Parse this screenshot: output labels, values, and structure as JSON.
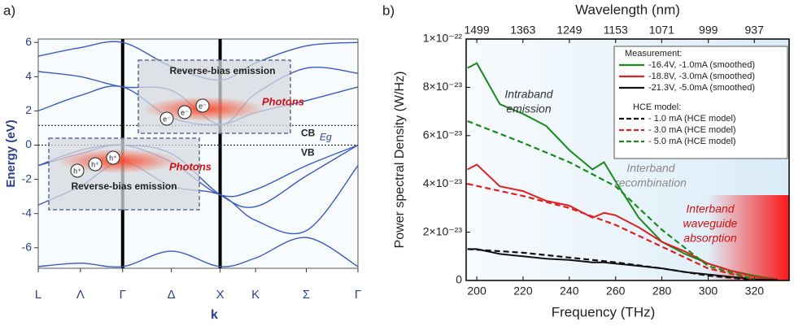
{
  "chart_data": [
    {
      "type": "line",
      "panel_label": "a)",
      "ylabel": "Energy (eV)",
      "xlabel": "k",
      "x": [
        0,
        0.433,
        0.866,
        1.366,
        1.866,
        2.23,
        2.75,
        3.28
      ],
      "xlim": [
        0,
        3.28
      ],
      "ylim": [
        -7.2,
        6.2
      ],
      "xticks": [
        {
          "value": 0,
          "label": "L"
        },
        {
          "value": 0.433,
          "label": "Λ"
        },
        {
          "value": 0.866,
          "label": "Γ"
        },
        {
          "value": 1.366,
          "label": "Δ"
        },
        {
          "value": 1.866,
          "label": "X"
        },
        {
          "value": 2.23,
          "label": "K"
        },
        {
          "value": 2.75,
          "label": "Σ"
        },
        {
          "value": 3.28,
          "label": "Γ"
        }
      ],
      "yticks": [
        -6,
        -4,
        -2,
        0,
        2,
        4,
        6
      ],
      "vlines": [
        0.866,
        1.866
      ],
      "levels": [
        {
          "label": "CB",
          "value": 1.15
        },
        {
          "label": "VB",
          "value": 0
        }
      ],
      "gap_label": "Eg",
      "series": [
        {
          "color": "#3a5bbf",
          "values": [
            -1.2,
            -0.5,
            0,
            -1.0,
            -2.9,
            -2.6,
            -1.2,
            0
          ]
        },
        {
          "color": "#3a5bbf",
          "values": [
            -1.2,
            -0.3,
            0,
            -0.5,
            -2.9,
            -3.6,
            -1.8,
            0
          ]
        },
        {
          "color": "#3a5bbf",
          "values": [
            -3.5,
            -2.4,
            -1.0,
            -2.4,
            -2.9,
            -4.4,
            -5.0,
            -1.2
          ]
        },
        {
          "color": "#3a5bbf",
          "values": [
            -7.1,
            -6.9,
            -7.1,
            -6.2,
            -7.1,
            -6.6,
            -5.4,
            -7.1
          ]
        },
        {
          "color": "#3a5bbf",
          "values": [
            2.0,
            2.9,
            3.4,
            1.6,
            1.2,
            1.9,
            2.6,
            3.4
          ]
        },
        {
          "color": "#3a5bbf",
          "values": [
            4.3,
            4.0,
            3.4,
            3.2,
            1.2,
            3.0,
            4.5,
            4.2
          ]
        },
        {
          "color": "#3a5bbf",
          "values": [
            5.2,
            5.7,
            6.0,
            4.6,
            3.8,
            4.8,
            5.8,
            6.0
          ]
        }
      ],
      "boxes": [
        {
          "title": "Reverse-bias emission",
          "photons": "Photons",
          "particles": [
            "e⁻",
            "e⁻",
            "e⁻"
          ]
        },
        {
          "title": "Reverse-bias emission",
          "photons": "Photons",
          "particles": [
            "h⁺",
            "h⁺",
            "h⁺"
          ]
        }
      ]
    },
    {
      "type": "line",
      "panel_label": "b)",
      "ylabel": "Power spectral Density (W/Hz)",
      "xlabel": "Frequency (THz)",
      "x2label": "Wavelength (nm)",
      "xlim": [
        195.4,
        335
      ],
      "ylim": [
        0,
        1e-22
      ],
      "xticks": [
        200,
        220,
        240,
        260,
        280,
        300,
        320
      ],
      "x2ticks": [
        1499,
        1363,
        1249,
        1153,
        1071,
        999,
        937
      ],
      "yticks": [
        0,
        {
          "value": 2e-23,
          "label": "2×10⁻²³"
        },
        {
          "value": 4e-23,
          "label": "4×10⁻²³"
        },
        {
          "value": 6e-23,
          "label": "6×10⁻²³"
        },
        {
          "value": 8e-23,
          "label": "8×10⁻²³"
        },
        {
          "value": 1e-22,
          "label": "1×10⁻²²"
        }
      ],
      "legend_titles": [
        "Measurement:",
        "HCE model:"
      ],
      "annotations": [
        {
          "text": [
            "Intraband",
            "emission"
          ],
          "color": "#333333"
        },
        {
          "text": [
            "Interband",
            "recombination"
          ],
          "color": "#888888"
        },
        {
          "text": [
            "Interband",
            "waveguide",
            "absorption"
          ],
          "color": "#cc1111"
        }
      ],
      "series": [
        {
          "name": "-16.4V, -1.0mA (smoothed)",
          "group": 0,
          "color": "#1a8a1a",
          "dashed": false,
          "x": [
            196,
            200,
            210,
            220,
            230,
            240,
            250,
            255,
            260,
            270,
            280,
            290,
            300,
            310,
            320,
            330
          ],
          "values": [
            8.8e-23,
            9e-23,
            7.3e-23,
            6.9e-23,
            6.4e-23,
            5.4e-23,
            4.6e-23,
            4.9e-23,
            4.1e-23,
            2.6e-23,
            1.6e-23,
            1.1e-23,
            7e-24,
            4e-24,
            2e-24,
            5e-25
          ]
        },
        {
          "name": "-18.8V, -3.0mA (smoothed)",
          "group": 0,
          "color": "#e02020",
          "dashed": false,
          "x": [
            196,
            200,
            210,
            220,
            230,
            240,
            250,
            255,
            260,
            270,
            280,
            290,
            300,
            310,
            320,
            330
          ],
          "values": [
            4.6e-23,
            4.8e-23,
            3.9e-23,
            3.7e-23,
            3.3e-23,
            3.1e-23,
            2.6e-23,
            2.8e-23,
            2.7e-23,
            2.2e-23,
            1.6e-23,
            1.2e-23,
            7e-24,
            4e-24,
            1.5e-24,
            5e-25
          ]
        },
        {
          "name": "-21.3V, -5.0mA (smoothed)",
          "group": 0,
          "color": "#111111",
          "dashed": false,
          "x": [
            196,
            200,
            210,
            220,
            230,
            240,
            250,
            255,
            260,
            270,
            280,
            290,
            300,
            310,
            320,
            330
          ],
          "values": [
            1.3e-23,
            1.3e-23,
            1.1e-23,
            1e-23,
            9e-24,
            8.5e-24,
            7.5e-24,
            7.5e-24,
            7e-24,
            6e-24,
            5e-24,
            3.5e-24,
            2.5e-24,
            1.5e-24,
            5e-25,
            2e-25
          ]
        },
        {
          "name": "- 1.0 mA (HCE model)",
          "group": 1,
          "color": "#111111",
          "dashed": true,
          "x": [
            196,
            220,
            240,
            260,
            280,
            300,
            320
          ],
          "values": [
            1.3e-23,
            1.15e-23,
            9.5e-24,
            7.5e-24,
            5e-24,
            2e-24,
            2e-25
          ]
        },
        {
          "name": "- 3.0 mA (HCE model)",
          "group": 1,
          "color": "#e02020",
          "dashed": true,
          "x": [
            196,
            220,
            240,
            260,
            280,
            300,
            320
          ],
          "values": [
            4e-23,
            3.5e-23,
            3e-23,
            2.3e-23,
            1.4e-23,
            5e-24,
            5e-25
          ]
        },
        {
          "name": "- 5.0 mA (HCE model)",
          "group": 1,
          "color": "#1a8a1a",
          "dashed": true,
          "x": [
            196,
            220,
            240,
            260,
            280,
            300,
            320
          ],
          "values": [
            6.6e-23,
            5.7e-23,
            4.9e-23,
            3.9e-23,
            2.1e-23,
            6e-24,
            5e-25
          ]
        }
      ]
    }
  ]
}
